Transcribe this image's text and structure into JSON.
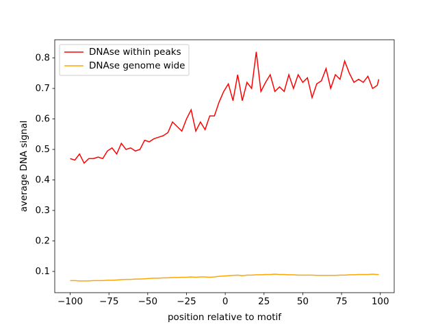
{
  "chart_data": {
    "type": "line",
    "xlabel": "position relative to motif",
    "ylabel": "average DNA signal",
    "x": [
      -100,
      -97,
      -94,
      -91,
      -88,
      -85,
      -82,
      -79,
      -76,
      -73,
      -70,
      -67,
      -64,
      -61,
      -58,
      -55,
      -52,
      -49,
      -46,
      -43,
      -40,
      -37,
      -34,
      -31,
      -28,
      -25,
      -22,
      -19,
      -16,
      -13,
      -10,
      -7,
      -4,
      -1,
      2,
      5,
      8,
      11,
      14,
      17,
      20,
      23,
      26,
      29,
      32,
      35,
      38,
      41,
      44,
      47,
      50,
      53,
      56,
      59,
      62,
      65,
      68,
      71,
      74,
      77,
      80,
      83,
      86,
      89,
      92,
      95,
      98,
      99
    ],
    "series": [
      {
        "name": "DNAse within peaks",
        "color": "#ff0000",
        "values": [
          0.47,
          0.465,
          0.485,
          0.455,
          0.47,
          0.47,
          0.475,
          0.47,
          0.495,
          0.505,
          0.485,
          0.52,
          0.5,
          0.505,
          0.495,
          0.5,
          0.53,
          0.525,
          0.535,
          0.54,
          0.545,
          0.555,
          0.59,
          0.575,
          0.56,
          0.6,
          0.63,
          0.56,
          0.59,
          0.565,
          0.61,
          0.61,
          0.655,
          0.69,
          0.715,
          0.66,
          0.745,
          0.66,
          0.72,
          0.7,
          0.82,
          0.69,
          0.72,
          0.745,
          0.69,
          0.705,
          0.69,
          0.745,
          0.7,
          0.745,
          0.72,
          0.735,
          0.67,
          0.715,
          0.725,
          0.765,
          0.7,
          0.745,
          0.73,
          0.79,
          0.75,
          0.72,
          0.73,
          0.72,
          0.74,
          0.7,
          0.71,
          0.73
        ]
      },
      {
        "name": "DNAse genome wide",
        "color": "#ffa500",
        "values": [
          0.07,
          0.07,
          0.069,
          0.069,
          0.069,
          0.07,
          0.07,
          0.07,
          0.071,
          0.071,
          0.072,
          0.073,
          0.074,
          0.074,
          0.075,
          0.075,
          0.076,
          0.077,
          0.078,
          0.078,
          0.079,
          0.079,
          0.08,
          0.08,
          0.081,
          0.081,
          0.082,
          0.081,
          0.082,
          0.082,
          0.081,
          0.082,
          0.084,
          0.085,
          0.086,
          0.087,
          0.088,
          0.086,
          0.088,
          0.088,
          0.089,
          0.089,
          0.09,
          0.09,
          0.091,
          0.09,
          0.09,
          0.089,
          0.089,
          0.088,
          0.088,
          0.088,
          0.088,
          0.087,
          0.087,
          0.087,
          0.087,
          0.087,
          0.088,
          0.088,
          0.089,
          0.089,
          0.09,
          0.09,
          0.09,
          0.091,
          0.09,
          0.09
        ]
      }
    ],
    "xlim": [
      -109.95,
      108.95
    ],
    "ylim": [
      0.0304,
      0.8596
    ],
    "xticks": [
      {
        "value": -100,
        "label": "−100"
      },
      {
        "value": -75,
        "label": "−75"
      },
      {
        "value": -50,
        "label": "−50"
      },
      {
        "value": -25,
        "label": "−25"
      },
      0,
      25,
      50,
      75,
      100
    ],
    "yticks": [
      0.1,
      0.2,
      0.3,
      0.4,
      0.5,
      0.6,
      0.7,
      0.8
    ],
    "legend": "upper left"
  }
}
